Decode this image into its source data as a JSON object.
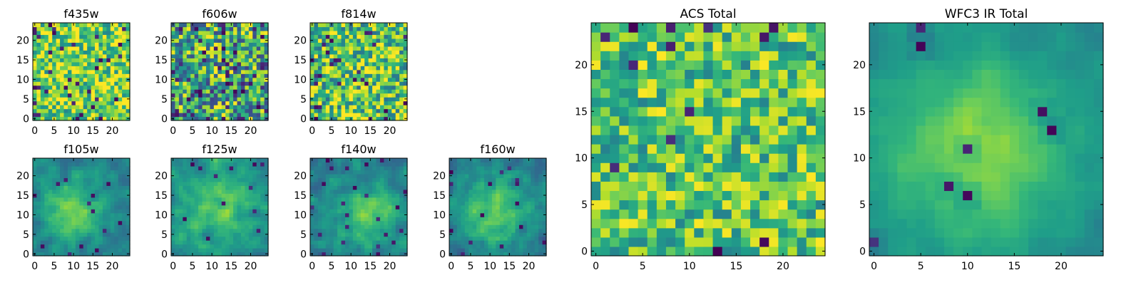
{
  "figure": {
    "colormap_low": "#440154",
    "colormap_mid": "#21918c",
    "colormap_high": "#fde725",
    "grid_size": 25
  },
  "chart_data": [
    {
      "type": "heatmap",
      "title": "f435w",
      "xticks": [
        0,
        5,
        10,
        15,
        20
      ],
      "yticks": [
        0,
        5,
        10,
        15,
        20
      ],
      "xlim": [
        0,
        24
      ],
      "ylim": [
        0,
        24
      ],
      "texture": "noise",
      "mean": 0.78,
      "spread": 0.32,
      "dark_fraction": 0.05,
      "seed": 11
    },
    {
      "type": "heatmap",
      "title": "f606w",
      "xticks": [
        0,
        5,
        10,
        15,
        20
      ],
      "yticks": [
        0,
        5,
        10,
        15,
        20
      ],
      "xlim": [
        0,
        24
      ],
      "ylim": [
        0,
        24
      ],
      "texture": "noise",
      "mean": 0.62,
      "spread": 0.42,
      "dark_fraction": 0.08,
      "seed": 23
    },
    {
      "type": "heatmap",
      "title": "f814w",
      "xticks": [
        0,
        5,
        10,
        15,
        20
      ],
      "yticks": [
        0,
        5,
        10,
        15,
        20
      ],
      "xlim": [
        0,
        24
      ],
      "ylim": [
        0,
        24
      ],
      "texture": "noise",
      "mean": 0.72,
      "spread": 0.36,
      "dark_fraction": 0.05,
      "seed": 37
    },
    {
      "type": "heatmap",
      "title": "f105w",
      "xticks": [
        0,
        5,
        10,
        15,
        20
      ],
      "yticks": [
        0,
        5,
        10,
        15,
        20
      ],
      "xlim": [
        0,
        24
      ],
      "ylim": [
        0,
        24
      ],
      "texture": "blob",
      "mean": 0.55,
      "spread": 0.22,
      "peak": 0.35,
      "center": [
        10,
        11
      ],
      "width": 6,
      "dark_fraction": 0.02,
      "seed": 41
    },
    {
      "type": "heatmap",
      "title": "f125w",
      "xticks": [
        0,
        5,
        10,
        15,
        20
      ],
      "yticks": [
        0,
        5,
        10,
        15,
        20
      ],
      "xlim": [
        0,
        24
      ],
      "ylim": [
        0,
        24
      ],
      "texture": "blob",
      "mean": 0.58,
      "spread": 0.24,
      "peak": 0.25,
      "center": [
        12,
        12
      ],
      "width": 7,
      "dark_fraction": 0.02,
      "seed": 53
    },
    {
      "type": "heatmap",
      "title": "f140w",
      "xticks": [
        0,
        5,
        10,
        15,
        20
      ],
      "yticks": [
        0,
        5,
        10,
        15,
        20
      ],
      "xlim": [
        0,
        24
      ],
      "ylim": [
        0,
        24
      ],
      "texture": "blob",
      "mean": 0.55,
      "spread": 0.24,
      "peak": 0.3,
      "center": [
        15,
        10
      ],
      "width": 6,
      "dark_fraction": 0.03,
      "seed": 67
    },
    {
      "type": "heatmap",
      "title": "f160w",
      "xticks": [
        0,
        5,
        10,
        15,
        20
      ],
      "yticks": [
        0,
        5,
        10,
        15,
        20
      ],
      "xlim": [
        0,
        24
      ],
      "ylim": [
        0,
        24
      ],
      "texture": "blob",
      "mean": 0.55,
      "spread": 0.24,
      "peak": 0.35,
      "center": [
        11,
        11
      ],
      "width": 6,
      "dark_fraction": 0.03,
      "seed": 79
    },
    {
      "type": "heatmap",
      "title": "ACS Total",
      "xticks": [
        0,
        5,
        10,
        15,
        20
      ],
      "yticks": [
        0,
        5,
        10,
        15,
        20
      ],
      "xlim": [
        0,
        24
      ],
      "ylim": [
        0,
        24
      ],
      "texture": "noise",
      "mean": 0.72,
      "spread": 0.28,
      "dark_fraction": 0.03,
      "seed": 97
    },
    {
      "type": "heatmap",
      "title": "WFC3 IR Total",
      "xticks": [
        0,
        5,
        10,
        15,
        20
      ],
      "yticks": [
        0,
        5,
        10,
        15,
        20
      ],
      "xlim": [
        0,
        24
      ],
      "ylim": [
        0,
        24
      ],
      "texture": "blob",
      "mean": 0.58,
      "spread": 0.12,
      "peak": 0.38,
      "center": [
        11,
        11
      ],
      "width": 7.5,
      "dark_fraction": 0.01,
      "seed": 101
    }
  ]
}
